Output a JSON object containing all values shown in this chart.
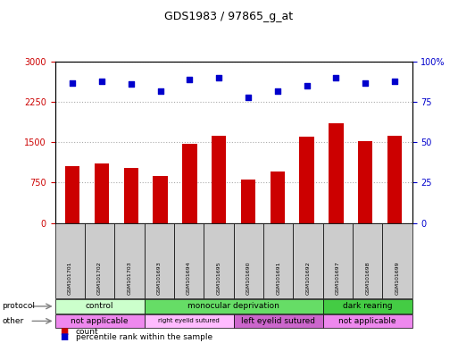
{
  "title": "GDS1983 / 97865_g_at",
  "samples": [
    "GSM101701",
    "GSM101702",
    "GSM101703",
    "GSM101693",
    "GSM101694",
    "GSM101695",
    "GSM101690",
    "GSM101691",
    "GSM101692",
    "GSM101697",
    "GSM101698",
    "GSM101699"
  ],
  "counts": [
    1050,
    1100,
    1020,
    870,
    1470,
    1630,
    800,
    960,
    1610,
    1850,
    1530,
    1630
  ],
  "percentiles": [
    87,
    88,
    86,
    82,
    89,
    90,
    78,
    82,
    85,
    90,
    87,
    88
  ],
  "bar_color": "#cc0000",
  "dot_color": "#0000cc",
  "ylim_left": [
    0,
    3000
  ],
  "ylim_right": [
    0,
    100
  ],
  "yticks_left": [
    0,
    750,
    1500,
    2250,
    3000
  ],
  "yticks_right": [
    0,
    25,
    50,
    75,
    100
  ],
  "protocol_groups": [
    {
      "label": "control",
      "start": 0,
      "end": 3,
      "color": "#ccffcc"
    },
    {
      "label": "monocular deprivation",
      "start": 3,
      "end": 9,
      "color": "#66dd66"
    },
    {
      "label": "dark rearing",
      "start": 9,
      "end": 12,
      "color": "#44cc44"
    }
  ],
  "other_groups": [
    {
      "label": "not applicable",
      "start": 0,
      "end": 3,
      "color": "#ee88ee"
    },
    {
      "label": "right eyelid sutured",
      "start": 3,
      "end": 6,
      "color": "#ffbbff"
    },
    {
      "label": "left eyelid sutured",
      "start": 6,
      "end": 9,
      "color": "#cc66cc"
    },
    {
      "label": "not applicable",
      "start": 9,
      "end": 12,
      "color": "#ee88ee"
    }
  ],
  "legend_count_label": "count",
  "legend_pct_label": "percentile rank within the sample",
  "protocol_label": "protocol",
  "other_label": "other",
  "grid_color": "#aaaaaa",
  "tick_color_left": "#cc0000",
  "tick_color_right": "#0000cc",
  "sample_box_color": "#cccccc"
}
